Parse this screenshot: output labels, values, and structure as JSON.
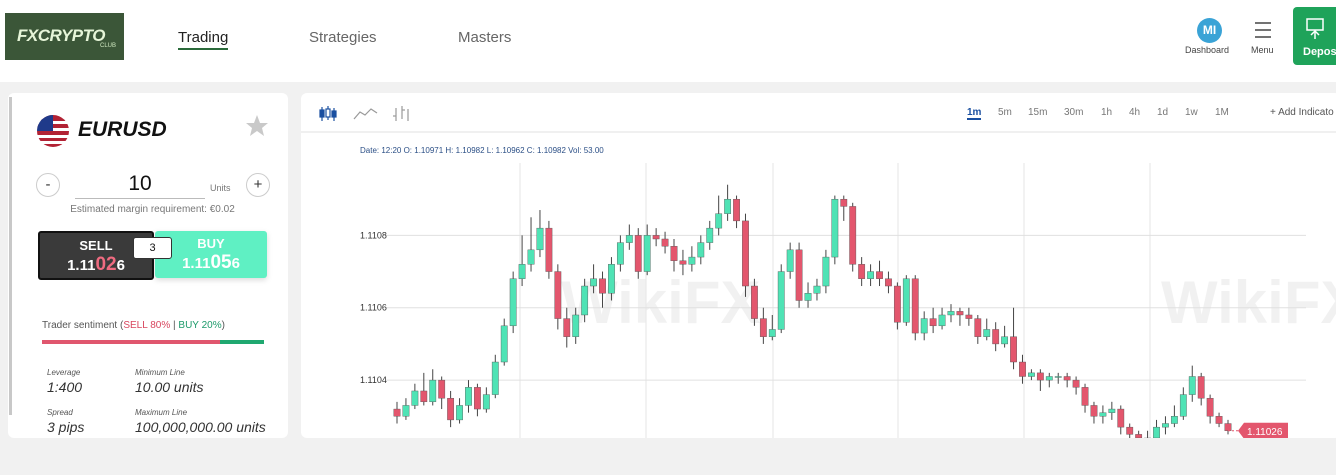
{
  "header": {
    "logo": "FXCRYPTO",
    "logo_sub": "CLUB",
    "nav": [
      "Trading",
      "Strategies",
      "Masters"
    ],
    "active_nav": 0,
    "avatar": "MI",
    "dashboard": "Dashboard",
    "menu": "Menu",
    "deposit": "Depos"
  },
  "instrument": {
    "symbol": "EURUSD",
    "minus": "-",
    "quantity": 10,
    "units": "Units",
    "plus": "+",
    "margin": "Estimated margin requirement: €0.02",
    "sell": {
      "label": "SELL",
      "price": [
        "1.11",
        "02",
        "6"
      ]
    },
    "spread": 3,
    "buy": {
      "label": "BUY",
      "price": [
        "1.11",
        "05",
        "6"
      ]
    },
    "sentiment": {
      "label": "Trader sentiment",
      "parens": [
        "(",
        ")"
      ],
      "separator": "|",
      "sell": {
        "value": 80,
        "label": "SELL 80%"
      },
      "buy": {
        "value": 20,
        "label": "BUY 20%"
      },
      "sell_color": "#e0566e",
      "buy_color": "#1fa870"
    },
    "stats": [
      {
        "label": "Leverage",
        "value": "1:400"
      },
      {
        "label": "Minimum Line",
        "value": "10.00 units"
      },
      {
        "label": "Spread",
        "value": "3 pips"
      },
      {
        "label": "Maximum Line",
        "value": "100,000,000.00 units"
      }
    ]
  },
  "chart": {
    "type": "candlestick",
    "timeframes": [
      "1m",
      "5m",
      "15m",
      "30m",
      "1h",
      "4h",
      "1d",
      "1w",
      "1M"
    ],
    "active_timeframe": 0,
    "add_indicator": "+ Add Indicato",
    "info": "Date: 12:20 O: 1.10971 H: 1.10982 L: 1.10962 C: 1.10982 Vol: 53.00",
    "watermark": "WikiFX",
    "ylim": [
      1.11024,
      1.111
    ],
    "yticks": [
      1.1108,
      1.1106,
      1.1104
    ],
    "grid": true,
    "up_color": "#4fe3b5",
    "down_color": "#e3566d",
    "last_price": 1.11026,
    "candles": [
      [
        1.11032,
        1.11034,
        1.11028,
        1.1103
      ],
      [
        1.1103,
        1.11035,
        1.11029,
        1.11033
      ],
      [
        1.11033,
        1.11039,
        1.11032,
        1.11037
      ],
      [
        1.11037,
        1.11042,
        1.11033,
        1.11034
      ],
      [
        1.11034,
        1.11043,
        1.11033,
        1.1104
      ],
      [
        1.1104,
        1.11041,
        1.11032,
        1.11035
      ],
      [
        1.11035,
        1.11037,
        1.11027,
        1.11029
      ],
      [
        1.11029,
        1.11035,
        1.11028,
        1.11033
      ],
      [
        1.11033,
        1.1104,
        1.11031,
        1.11038
      ],
      [
        1.11038,
        1.11039,
        1.1103,
        1.11032
      ],
      [
        1.11032,
        1.11038,
        1.11031,
        1.11036
      ],
      [
        1.11036,
        1.11047,
        1.11035,
        1.11045
      ],
      [
        1.11045,
        1.11057,
        1.11044,
        1.11055
      ],
      [
        1.11055,
        1.1107,
        1.11053,
        1.11068
      ],
      [
        1.11068,
        1.1108,
        1.11066,
        1.11072
      ],
      [
        1.11072,
        1.11085,
        1.1107,
        1.11076
      ],
      [
        1.11076,
        1.11087,
        1.11074,
        1.11082
      ],
      [
        1.11082,
        1.11084,
        1.11068,
        1.1107
      ],
      [
        1.1107,
        1.11072,
        1.11054,
        1.11057
      ],
      [
        1.11057,
        1.1106,
        1.11049,
        1.11052
      ],
      [
        1.11052,
        1.1106,
        1.1105,
        1.11058
      ],
      [
        1.11058,
        1.11068,
        1.11056,
        1.11066
      ],
      [
        1.11066,
        1.11072,
        1.11064,
        1.11068
      ],
      [
        1.11068,
        1.1107,
        1.1106,
        1.11064
      ],
      [
        1.11064,
        1.11074,
        1.11062,
        1.11072
      ],
      [
        1.11072,
        1.1108,
        1.1107,
        1.11078
      ],
      [
        1.11078,
        1.11083,
        1.11076,
        1.1108
      ],
      [
        1.1108,
        1.11082,
        1.11068,
        1.1107
      ],
      [
        1.1107,
        1.11083,
        1.11069,
        1.1108
      ],
      [
        1.1108,
        1.11082,
        1.11077,
        1.11079
      ],
      [
        1.11079,
        1.11081,
        1.11075,
        1.11077
      ],
      [
        1.11077,
        1.11079,
        1.1107,
        1.11073
      ],
      [
        1.11073,
        1.11076,
        1.11069,
        1.11072
      ],
      [
        1.11072,
        1.11077,
        1.1107,
        1.11074
      ],
      [
        1.11074,
        1.1108,
        1.11072,
        1.11078
      ],
      [
        1.11078,
        1.11084,
        1.11076,
        1.11082
      ],
      [
        1.11082,
        1.11091,
        1.1108,
        1.11086
      ],
      [
        1.11086,
        1.11094,
        1.11084,
        1.1109
      ],
      [
        1.1109,
        1.11091,
        1.11082,
        1.11084
      ],
      [
        1.11084,
        1.11086,
        1.11063,
        1.11066
      ],
      [
        1.11066,
        1.11068,
        1.11055,
        1.11057
      ],
      [
        1.11057,
        1.1106,
        1.1105,
        1.11052
      ],
      [
        1.11052,
        1.11058,
        1.11051,
        1.11054
      ],
      [
        1.11054,
        1.11072,
        1.11053,
        1.1107
      ],
      [
        1.1107,
        1.11078,
        1.11068,
        1.11076
      ],
      [
        1.11076,
        1.11078,
        1.1106,
        1.11062
      ],
      [
        1.11062,
        1.11067,
        1.1106,
        1.11064
      ],
      [
        1.11064,
        1.11068,
        1.11062,
        1.11066
      ],
      [
        1.11066,
        1.11076,
        1.11064,
        1.11074
      ],
      [
        1.11074,
        1.11091,
        1.11072,
        1.1109
      ],
      [
        1.1109,
        1.11091,
        1.11084,
        1.11088
      ],
      [
        1.11088,
        1.11089,
        1.1107,
        1.11072
      ],
      [
        1.11072,
        1.11074,
        1.11066,
        1.11068
      ],
      [
        1.11068,
        1.11072,
        1.11066,
        1.1107
      ],
      [
        1.1107,
        1.11073,
        1.11066,
        1.11068
      ],
      [
        1.11068,
        1.1107,
        1.11064,
        1.11066
      ],
      [
        1.11066,
        1.11067,
        1.11054,
        1.11056
      ],
      [
        1.11056,
        1.11069,
        1.11055,
        1.11068
      ],
      [
        1.11068,
        1.11069,
        1.11051,
        1.11053
      ],
      [
        1.11053,
        1.11059,
        1.11051,
        1.11057
      ],
      [
        1.11057,
        1.1106,
        1.11053,
        1.11055
      ],
      [
        1.11055,
        1.1106,
        1.11054,
        1.11058
      ],
      [
        1.11058,
        1.11061,
        1.11056,
        1.11059
      ],
      [
        1.11059,
        1.1106,
        1.11055,
        1.11058
      ],
      [
        1.11058,
        1.1106,
        1.11055,
        1.11057
      ],
      [
        1.11057,
        1.11058,
        1.1105,
        1.11052
      ],
      [
        1.11052,
        1.11057,
        1.11051,
        1.11054
      ],
      [
        1.11054,
        1.11056,
        1.11048,
        1.1105
      ],
      [
        1.1105,
        1.11055,
        1.11049,
        1.11052
      ],
      [
        1.11052,
        1.1106,
        1.11043,
        1.11045
      ],
      [
        1.11045,
        1.11047,
        1.11039,
        1.11041
      ],
      [
        1.11041,
        1.11043,
        1.1104,
        1.11042
      ],
      [
        1.11042,
        1.11043,
        1.11037,
        1.1104
      ],
      [
        1.1104,
        1.11042,
        1.11038,
        1.11041
      ],
      [
        1.11041,
        1.11042,
        1.11039,
        1.11041
      ],
      [
        1.11041,
        1.11042,
        1.11038,
        1.1104
      ],
      [
        1.1104,
        1.11041,
        1.11036,
        1.11038
      ],
      [
        1.11038,
        1.11039,
        1.11031,
        1.11033
      ],
      [
        1.11033,
        1.11034,
        1.11028,
        1.1103
      ],
      [
        1.1103,
        1.11033,
        1.11028,
        1.11031
      ],
      [
        1.11031,
        1.11034,
        1.11029,
        1.11032
      ],
      [
        1.11032,
        1.11033,
        1.11025,
        1.11027
      ],
      [
        1.11027,
        1.11028,
        1.11024,
        1.11025
      ],
      [
        1.11025,
        1.11026,
        1.11023,
        1.11024
      ],
      [
        1.11024,
        1.11026,
        1.11023,
        1.11024
      ],
      [
        1.11024,
        1.11029,
        1.11023,
        1.11027
      ],
      [
        1.11027,
        1.1103,
        1.11025,
        1.11028
      ],
      [
        1.11028,
        1.11033,
        1.11027,
        1.1103
      ],
      [
        1.1103,
        1.11038,
        1.11029,
        1.11036
      ],
      [
        1.11036,
        1.11044,
        1.11034,
        1.11041
      ],
      [
        1.11041,
        1.11042,
        1.11033,
        1.11035
      ],
      [
        1.11035,
        1.11036,
        1.11028,
        1.1103
      ],
      [
        1.1103,
        1.11031,
        1.11027,
        1.11028
      ],
      [
        1.11028,
        1.11029,
        1.11025,
        1.11026
      ]
    ]
  }
}
